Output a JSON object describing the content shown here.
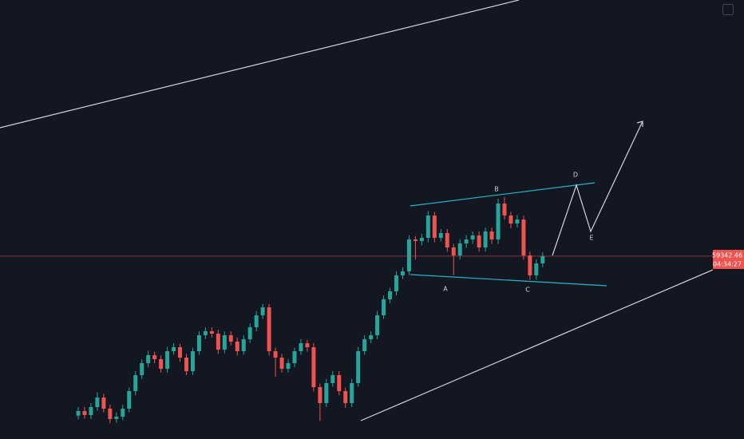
{
  "chart_data": {
    "type": "candlestick",
    "ylim": [
      57000,
      62625
    ],
    "up_color": "#26a69a",
    "down_color": "#ef5350",
    "open": [
      57300,
      57358,
      57307,
      57409,
      57532,
      57389,
      57256,
      57286,
      57389,
      57614,
      57818,
      57972,
      58074,
      58023,
      57900,
      58125,
      58176,
      58043,
      57869,
      58125,
      58330,
      58381,
      58350,
      58145,
      58330,
      58248,
      58125,
      58278,
      58432,
      58585,
      58687,
      58125,
      58043,
      57900,
      57972,
      58125,
      58227,
      58176,
      57665,
      57460,
      57716,
      57818,
      57614,
      57460,
      57716,
      58125,
      58278,
      58330,
      58585,
      58790,
      58892,
      59097,
      59148,
      59557,
      59536,
      59577,
      59864,
      59577,
      59639,
      59454,
      59352,
      59506,
      59557,
      59608,
      59454,
      59659,
      59557,
      60017,
      59864,
      59761,
      59812,
      59352,
      59097,
      59250
    ],
    "high": [
      57410,
      57410,
      57460,
      57600,
      57580,
      57440,
      57340,
      57440,
      57660,
      57870,
      58020,
      58130,
      58120,
      58070,
      58180,
      58230,
      58220,
      58090,
      58170,
      58380,
      58430,
      58430,
      58400,
      58380,
      58380,
      58300,
      58330,
      58480,
      58640,
      58730,
      58730,
      58170,
      58090,
      58020,
      58170,
      58280,
      58270,
      58230,
      57710,
      57770,
      57870,
      57870,
      57660,
      57770,
      58180,
      58330,
      58380,
      58640,
      58840,
      58940,
      59150,
      59200,
      59610,
      59600,
      59630,
      59920,
      59910,
      59690,
      59690,
      59500,
      59560,
      59610,
      59660,
      59660,
      59710,
      59710,
      60080,
      60100,
      59910,
      59870,
      59860,
      59400,
      59300,
      59390
    ],
    "low": [
      57250,
      57260,
      57257,
      57360,
      57340,
      57200,
      57210,
      57240,
      57340,
      57560,
      57770,
      57920,
      57970,
      57850,
      57850,
      58080,
      57990,
      57820,
      57820,
      58080,
      58280,
      58300,
      58090,
      58100,
      58200,
      58070,
      58080,
      58230,
      58380,
      58540,
      58070,
      57800,
      57850,
      57850,
      57920,
      58080,
      58120,
      57610,
      57230,
      57410,
      57670,
      57560,
      57400,
      57410,
      57670,
      58080,
      58230,
      58280,
      58540,
      58740,
      58840,
      59050,
      59100,
      59300,
      59480,
      59520,
      59520,
      59530,
      59400,
      59100,
      59300,
      59450,
      59500,
      59400,
      59400,
      59500,
      59500,
      59810,
      59700,
      59710,
      59300,
      59040,
      59040,
      59200
    ],
    "close": [
      57358,
      57307,
      57409,
      57532,
      57389,
      57256,
      57286,
      57389,
      57614,
      57818,
      57972,
      58074,
      58023,
      57900,
      58125,
      58176,
      58043,
      57869,
      58125,
      58330,
      58381,
      58350,
      58145,
      58330,
      58248,
      58125,
      58278,
      58432,
      58585,
      58687,
      58125,
      58043,
      57900,
      57972,
      58125,
      58227,
      58176,
      57665,
      57460,
      57716,
      57818,
      57614,
      57460,
      57716,
      58125,
      58278,
      58330,
      58585,
      58790,
      58892,
      59097,
      59148,
      59557,
      59536,
      59577,
      59864,
      59577,
      59639,
      59454,
      59352,
      59506,
      59557,
      59608,
      59454,
      59659,
      59557,
      60017,
      59864,
      59761,
      59812,
      59352,
      59097,
      59250,
      59342.46
    ],
    "last_price": 59342.46,
    "countdown": "04:34:27",
    "annotations": [
      "A",
      "B",
      "C",
      "D",
      "E"
    ]
  }
}
